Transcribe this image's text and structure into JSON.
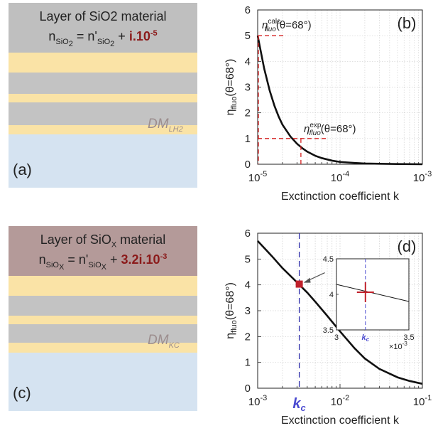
{
  "panel_a": {
    "title_line1": "Layer of SiO2 material",
    "n_symbol": "n",
    "n_sub": "SiO",
    "n_sub2": "2",
    "equals": " = n'",
    "rhs_sub": "SiO",
    "rhs_sub2": "2",
    "plus": " + ",
    "imag": "i.10",
    "imag_exp": "-5",
    "dm": "DM",
    "dm_sub": "LH2",
    "label": "(a)"
  },
  "panel_c": {
    "title_line1": "Layer of SiO",
    "title_sub": "X",
    "title_line1b": " material",
    "n_symbol": "n",
    "n_sub": "SiO",
    "n_sub2": "X",
    "equals": " = n'",
    "rhs_sub": "SiO",
    "rhs_sub2": "X",
    "plus": " + ",
    "imag": "3.2i.10",
    "imag_exp": "-3",
    "dm": "DM",
    "dm_sub": "KC",
    "label": "(c)"
  },
  "chart_data": [
    {
      "type": "line",
      "panel": "(b)",
      "xscale": "log",
      "xlim": [
        1e-05,
        0.001
      ],
      "ylim": [
        0,
        6
      ],
      "xlabel": "Exctinction coefficient k",
      "ylabel": "ηfluo(θ=68°)",
      "xticks": [
        "10-5",
        "10-4",
        "10-3"
      ],
      "yticks": [
        "0",
        "1",
        "2",
        "3",
        "4",
        "5",
        "6"
      ],
      "annot_calc": "η_fluo^calc (θ=68°)",
      "annot_exp": "η_fluo^exp(θ=68°)",
      "calc_point": {
        "k": 1e-05,
        "eta": 5
      },
      "exp_point": {
        "k": 3.35e-05,
        "eta": 1
      },
      "series": [
        {
          "x": [
            1e-05,
            1.2e-05,
            1.4e-05,
            1.6e-05,
            1.8e-05,
            2e-05,
            2.5e-05,
            3e-05,
            3.5e-05,
            4e-05,
            5e-05,
            6e-05,
            8e-05,
            0.0001,
            0.00015,
            0.0002,
            0.0003,
            0.0005,
            0.001
          ],
          "y": [
            5,
            3.72,
            2.86,
            2.27,
            1.85,
            1.54,
            1.08,
            0.8,
            0.62,
            0.49,
            0.33,
            0.24,
            0.14,
            0.09,
            0.05,
            0.03,
            0.02,
            0.01,
            0.0
          ]
        }
      ]
    },
    {
      "type": "line",
      "panel": "(d)",
      "xscale": "log",
      "xlim": [
        0.001,
        0.1
      ],
      "ylim": [
        0,
        6
      ],
      "xlabel": "Exctinction coefficient k",
      "ylabel": "ηfluo(θ=68°)",
      "xticks": [
        "10-3",
        "10-2",
        "10-1"
      ],
      "yticks": [
        "0",
        "1",
        "2",
        "3",
        "4",
        "5",
        "6"
      ],
      "kc_label": "kc",
      "kc": 0.0032,
      "kc_eta": 4.03,
      "series": [
        {
          "x": [
            0.001,
            0.0015,
            0.002,
            0.003,
            0.004,
            0.005,
            0.007,
            0.01,
            0.015,
            0.02,
            0.03,
            0.05,
            0.07,
            0.1
          ],
          "y": [
            5.7,
            5.1,
            4.65,
            4.1,
            3.7,
            3.35,
            2.8,
            2.2,
            1.55,
            1.15,
            0.75,
            0.42,
            0.28,
            0.17
          ]
        }
      ],
      "inset": {
        "xlim": [
          0.003,
          0.0035
        ],
        "ylim": [
          3.5,
          4.5
        ],
        "xticks": [
          "3",
          "3.5"
        ],
        "yticks": [
          "3.5",
          "4",
          "4.5"
        ],
        "multiplier": "×10",
        "multiplier_exp": "-3",
        "kc_label": "kc",
        "line": {
          "x": [
            0.003,
            0.0035
          ],
          "y": [
            4.14,
            3.9
          ]
        }
      }
    }
  ]
}
